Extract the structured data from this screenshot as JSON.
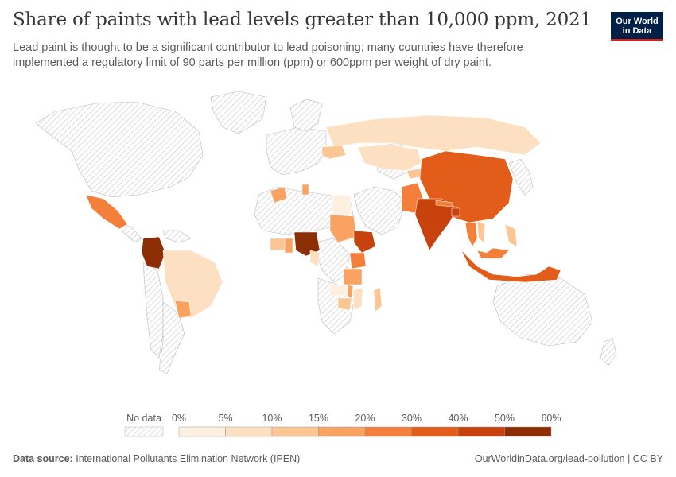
{
  "header": {
    "title": "Share of paints with lead levels greater than 10,000 ppm, 2021",
    "subtitle": "Lead paint is thought to be a significant contributor to lead poisoning; many countries have therefore implemented a regulatory limit of 90 parts per million (ppm) or 600ppm per weight of dry paint.",
    "logo_line1": "Our World",
    "logo_line2": "in Data"
  },
  "legend": {
    "no_data_label": "No data",
    "bins": [
      {
        "label": "0%",
        "color": "#fef0e1"
      },
      {
        "label": "5%",
        "color": "#fde0c1"
      },
      {
        "label": "10%",
        "color": "#fcc694"
      },
      {
        "label": "15%",
        "color": "#f9a262"
      },
      {
        "label": "20%",
        "color": "#f47f3b"
      },
      {
        "label": "30%",
        "color": "#e35d1a"
      },
      {
        "label": "40%",
        "color": "#c8420d"
      },
      {
        "label": "50%",
        "color": "#8c2d04"
      }
    ],
    "end_label": "60%"
  },
  "map_data": {
    "Mexico": 20,
    "Colombia": 55,
    "Brazil": 4,
    "Paraguay": 18,
    "Morocco": 18,
    "Tunisia": 18,
    "Egypt": 2,
    "Ivory Coast": 12,
    "Ghana": 18,
    "Nigeria": 55,
    "Cameroon": 8,
    "Sudan": 18,
    "Ethiopia": 45,
    "Kenya": 30,
    "Tanzania": 18,
    "Zambia": 2,
    "Malawi": 18,
    "Mozambique": 8,
    "Zimbabwe": 12,
    "Madagascar": 12,
    "Russia": 4,
    "Ukraine": 10,
    "Kazakhstan": 8,
    "Kyrgyzstan": 12,
    "Pakistan": 20,
    "India": 38,
    "Nepal": 20,
    "Bangladesh": 40,
    "China": 30,
    "Thailand": 22,
    "Vietnam": 12,
    "Philippines": 12,
    "Malaysia": 22,
    "Indonesia": 35
  },
  "footer": {
    "source_label": "Data source:",
    "source_text": "International Pollutants Elimination Network (IPEN)",
    "right_text": "OurWorldinData.org/lead-pollution | CC BY"
  }
}
